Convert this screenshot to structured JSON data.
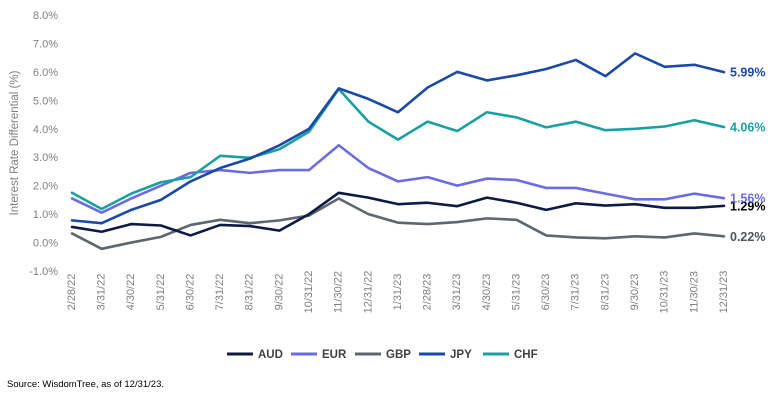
{
  "chart_data": {
    "type": "line",
    "title": "",
    "ylabel": "Interest Rate Differential (%)",
    "xlabel": "",
    "ylim": [
      -1.0,
      8.0
    ],
    "yticks": [
      "8.0%",
      "7.0%",
      "6.0%",
      "5.0%",
      "4.0%",
      "3.0%",
      "2.0%",
      "1.0%",
      "0.0%",
      "-1.0%"
    ],
    "ytick_values": [
      8,
      7,
      6,
      5,
      4,
      3,
      2,
      1,
      0,
      -1
    ],
    "grid": false,
    "legend_placement": "bottom-center",
    "categories": [
      "2/28/22",
      "3/31/22",
      "4/30/22",
      "5/31/22",
      "6/30/22",
      "7/31/22",
      "8/31/22",
      "9/30/22",
      "10/31/22",
      "11/30/22",
      "12/31/22",
      "1/31/23",
      "2/28/23",
      "3/31/23",
      "4/30/23",
      "5/31/23",
      "6/30/23",
      "7/31/23",
      "8/31/23",
      "9/30/23",
      "10/31/23",
      "11/30/23",
      "12/31/23"
    ],
    "series": [
      {
        "name": "AUD",
        "color": "#0d1a44",
        "end_label": "1.29%",
        "values": [
          0.55,
          0.38,
          0.65,
          0.6,
          0.25,
          0.62,
          0.58,
          0.42,
          1.0,
          1.75,
          1.58,
          1.35,
          1.4,
          1.28,
          1.58,
          1.4,
          1.15,
          1.38,
          1.3,
          1.35,
          1.22,
          1.22,
          1.29
        ]
      },
      {
        "name": "EUR",
        "color": "#6b6ce0",
        "end_label": "1.56%",
        "values": [
          1.55,
          1.05,
          1.55,
          2.0,
          2.45,
          2.55,
          2.45,
          2.55,
          2.55,
          3.42,
          2.62,
          2.15,
          2.3,
          2.0,
          2.25,
          2.2,
          1.92,
          1.92,
          1.72,
          1.52,
          1.52,
          1.72,
          1.56
        ]
      },
      {
        "name": "GBP",
        "color": "#5e6670",
        "end_label": "0.22%",
        "values": [
          0.32,
          -0.22,
          0.0,
          0.2,
          0.62,
          0.8,
          0.68,
          0.78,
          0.95,
          1.55,
          1.0,
          0.7,
          0.65,
          0.72,
          0.85,
          0.8,
          0.25,
          0.18,
          0.15,
          0.22,
          0.18,
          0.32,
          0.22
        ]
      },
      {
        "name": "JPY",
        "color": "#1b49a8",
        "end_label": "5.99%",
        "values": [
          0.78,
          0.68,
          1.15,
          1.5,
          2.15,
          2.62,
          2.95,
          3.42,
          4.0,
          5.42,
          5.05,
          4.58,
          5.45,
          6.0,
          5.7,
          5.88,
          6.1,
          6.42,
          5.85,
          6.65,
          6.18,
          6.25,
          5.99
        ]
      },
      {
        "name": "CHF",
        "color": "#1aa0a0",
        "end_label": "4.06%",
        "values": [
          1.75,
          1.18,
          1.72,
          2.12,
          2.3,
          3.05,
          2.98,
          3.28,
          3.9,
          5.4,
          4.25,
          3.62,
          4.25,
          3.92,
          4.58,
          4.4,
          4.05,
          4.25,
          3.95,
          4.0,
          4.08,
          4.3,
          4.06
        ]
      }
    ],
    "legend_order": [
      "AUD",
      "EUR",
      "GBP",
      "JPY",
      "CHF"
    ]
  },
  "source": "Source: WisdomTree, as of 12/31/23."
}
